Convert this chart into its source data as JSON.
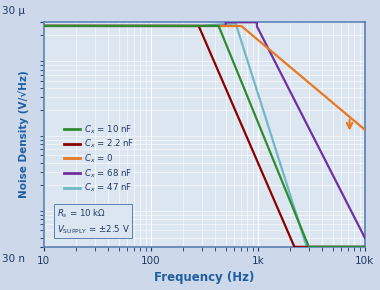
{
  "xlabel": "Frequency (Hz)",
  "ylabel": "Noise Density (V/√Hz)",
  "x_ticks": [
    10,
    100,
    1000,
    10000
  ],
  "x_tick_labels": [
    "10",
    "100",
    "1k",
    "10k"
  ],
  "y_top_label": "30 μ",
  "y_bot_label": "30 n",
  "background_color": "#cdd9ea",
  "plot_bg": "#dce6f1",
  "grid_color": "#ffffff",
  "border_color": "#5b7fb5",
  "text_color": "#1f3864",
  "axis_label_color": "#1f5fa0",
  "legend_labels": [
    "$C_x$ = 10 nF",
    "$C_x$ = 2.2 nF",
    "$C_x$ = 0",
    "$C_x$ = 68 nF",
    "$C_x$ = 47 nF"
  ],
  "curve_colors": [
    "#2e8b2e",
    "#8b0000",
    "#e87820",
    "#7030a0",
    "#70b8c8"
  ],
  "flat_level": 2.68e-05,
  "annotation": "$R_s$ = 10 kΩ\n$V_{\\rm SUPPLY}$ = ±2.5 V"
}
